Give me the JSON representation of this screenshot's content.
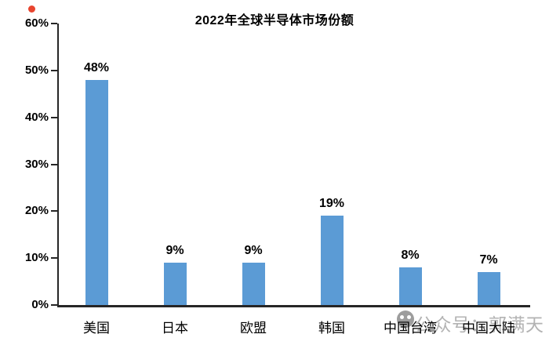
{
  "chart_data": {
    "type": "bar",
    "title": "2022年全球半导体市场份额",
    "categories": [
      "美国",
      "日本",
      "欧盟",
      "韩国",
      "中国台湾",
      "中国大陆"
    ],
    "values": [
      48,
      9,
      9,
      19,
      8,
      7
    ],
    "value_labels": [
      "48%",
      "9%",
      "9%",
      "19%",
      "8%",
      "7%"
    ],
    "xlabel": "",
    "ylabel": "",
    "ylim": [
      0,
      60
    ],
    "ytick_step": 10,
    "ytick_labels": [
      "0%",
      "10%",
      "20%",
      "30%",
      "40%",
      "50%",
      "60%"
    ],
    "grid": false,
    "legend": "none",
    "bar_color": "#5B9BD5",
    "axis_color": "#262626",
    "text_color": "#000000"
  },
  "watermark": {
    "icon": "wechat-smiley-icon",
    "text": "公众号：郭满天",
    "color": "#b3b3b3"
  },
  "marker": {
    "red_dot_color": "#e8442e"
  }
}
